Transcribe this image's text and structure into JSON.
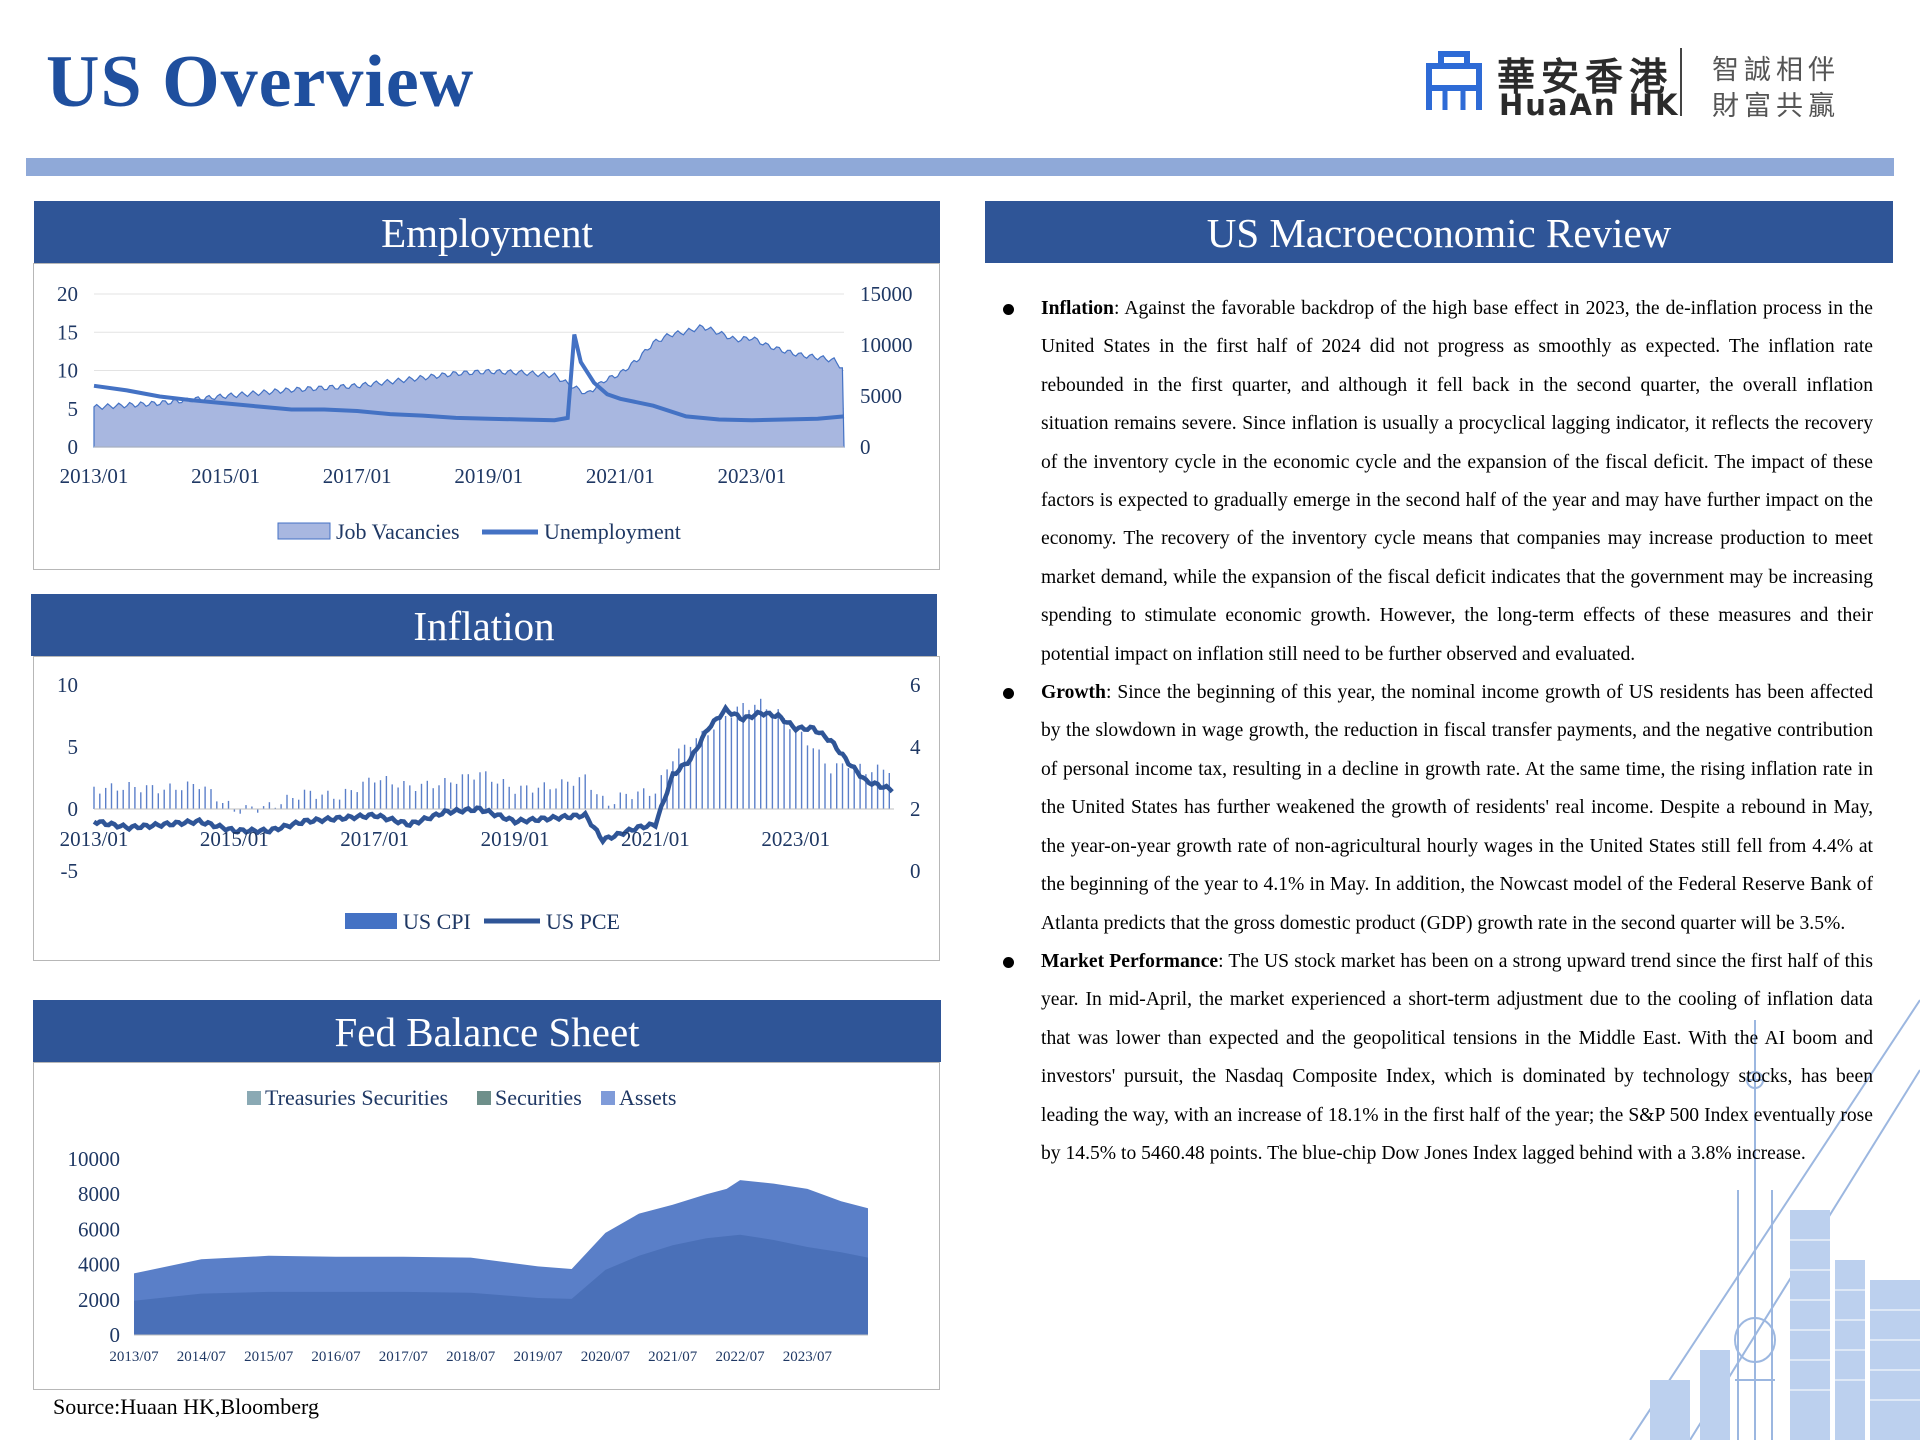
{
  "page": {
    "title": "US Overview",
    "source": "Source:Huaan HK,Bloomberg"
  },
  "logo": {
    "name_cn": "華安香港",
    "name_en": "HuaAn HK",
    "slogan_line1": "智誠相伴",
    "slogan_line2": "財富共贏",
    "brand_color": "#2e6bd6"
  },
  "colors": {
    "header_bar": "#2f5597",
    "top_rule": "#8fa9d8",
    "title": "#1f4f9e"
  },
  "employment": {
    "heading": "Employment",
    "chart_data": {
      "type": "area",
      "x_ticks": [
        "2013/01",
        "2015/01",
        "2017/01",
        "2019/01",
        "2021/01",
        "2023/01"
      ],
      "y_left": {
        "ticks": [
          "20",
          "15",
          "10",
          "5",
          "0"
        ],
        "range": [
          0,
          20
        ]
      },
      "y_right": {
        "ticks": [
          "15000",
          "10000",
          "5000",
          "0"
        ],
        "range": [
          0,
          15000
        ]
      },
      "legend": [
        "Job Vacancies",
        "Unemployment"
      ],
      "series": [
        {
          "name": "Job Vacancies",
          "axis": "right",
          "kind": "area",
          "color": "#a8b7e0",
          "x": [
            2013.0,
            2014.0,
            2015.0,
            2016.0,
            2017.0,
            2018.0,
            2018.5,
            2019.0,
            2019.5,
            2020.0,
            2020.25,
            2020.5,
            2020.75,
            2021.0,
            2021.25,
            2021.5,
            2021.75,
            2022.0,
            2022.25,
            2022.5,
            2022.75,
            2023.0,
            2023.25,
            2023.5,
            2023.75,
            2024.0,
            2024.25,
            2024.4
          ],
          "values": [
            3900,
            4300,
            5000,
            5600,
            6000,
            6800,
            7200,
            7400,
            7300,
            7000,
            6000,
            5200,
            6500,
            7200,
            8500,
            10200,
            11000,
            11300,
            11800,
            11200,
            10500,
            10700,
            9900,
            9400,
            9000,
            8800,
            8500,
            7600
          ]
        },
        {
          "name": "Unemployment",
          "axis": "left",
          "kind": "line",
          "color": "#4472c4",
          "x": [
            2013.0,
            2013.5,
            2014.0,
            2014.5,
            2015.0,
            2015.5,
            2016.0,
            2016.5,
            2017.0,
            2017.5,
            2018.0,
            2018.5,
            2019.0,
            2019.5,
            2020.0,
            2020.2,
            2020.3,
            2020.4,
            2020.6,
            2020.8,
            2021.0,
            2021.5,
            2022.0,
            2022.5,
            2023.0,
            2023.5,
            2024.0,
            2024.4
          ],
          "values": [
            8.0,
            7.4,
            6.6,
            6.1,
            5.7,
            5.3,
            4.9,
            4.9,
            4.7,
            4.3,
            4.1,
            3.8,
            3.7,
            3.6,
            3.5,
            3.8,
            14.7,
            11.1,
            8.4,
            6.9,
            6.3,
            5.4,
            4.0,
            3.6,
            3.5,
            3.6,
            3.7,
            4.0
          ]
        }
      ]
    }
  },
  "inflation": {
    "heading": "Inflation",
    "chart_data": {
      "type": "bar",
      "x_ticks": [
        "2013/01",
        "2015/01",
        "2017/01",
        "2019/01",
        "2021/01",
        "2023/01"
      ],
      "y_left": {
        "ticks": [
          "10",
          "5",
          "0",
          "-5"
        ],
        "range": [
          -5,
          10
        ]
      },
      "y_right": {
        "ticks": [
          "6",
          "4",
          "2",
          "0"
        ],
        "range": [
          0,
          6
        ]
      },
      "legend": [
        "US CPI",
        "US PCE"
      ],
      "series": [
        {
          "name": "US CPI",
          "axis": "left",
          "kind": "bar",
          "color": "#4472c4",
          "x": [
            2013.0,
            2013.5,
            2014.0,
            2014.5,
            2015.0,
            2015.5,
            2016.0,
            2016.5,
            2017.0,
            2017.5,
            2018.0,
            2018.5,
            2019.0,
            2019.5,
            2020.0,
            2020.3,
            2020.5,
            2020.75,
            2021.0,
            2021.25,
            2021.5,
            2021.75,
            2022.0,
            2022.25,
            2022.5,
            2022.75,
            2023.0,
            2023.25,
            2023.5,
            2023.75,
            2024.0,
            2024.4
          ],
          "values": [
            1.6,
            1.8,
            1.6,
            2.0,
            -0.1,
            0.2,
            1.3,
            1.0,
            2.5,
            1.8,
            2.1,
            2.9,
            1.6,
            1.8,
            2.5,
            0.3,
            1.0,
            1.3,
            1.4,
            4.2,
            5.4,
            6.2,
            7.5,
            8.3,
            8.5,
            7.7,
            6.4,
            5.0,
            3.2,
            3.7,
            3.1,
            3.3
          ]
        },
        {
          "name": "US PCE",
          "axis": "right",
          "kind": "line",
          "color": "#2f5597",
          "x": [
            2013.0,
            2013.5,
            2014.0,
            2014.5,
            2015.0,
            2015.5,
            2016.0,
            2016.5,
            2017.0,
            2017.5,
            2018.0,
            2018.5,
            2019.0,
            2019.5,
            2020.0,
            2020.25,
            2020.5,
            2020.75,
            2021.0,
            2021.25,
            2021.5,
            2021.75,
            2022.0,
            2022.25,
            2022.5,
            2022.75,
            2023.0,
            2023.25,
            2023.5,
            2023.75,
            2024.0,
            2024.4
          ],
          "values": [
            1.6,
            1.4,
            1.5,
            1.6,
            1.3,
            1.3,
            1.6,
            1.7,
            1.8,
            1.5,
            1.9,
            2.0,
            1.6,
            1.7,
            1.8,
            1.0,
            1.2,
            1.4,
            1.5,
            3.1,
            3.6,
            4.6,
            5.2,
            4.9,
            5.1,
            5.0,
            4.6,
            4.6,
            4.2,
            3.5,
            2.9,
            2.6
          ]
        }
      ]
    }
  },
  "fed": {
    "heading": "Fed Balance Sheet",
    "chart_data": {
      "type": "area",
      "categories": [
        "2013/07",
        "2014/07",
        "2015/07",
        "2016/07",
        "2017/07",
        "2018/07",
        "2019/07",
        "2020/07",
        "2021/07",
        "2022/07",
        "2023/07"
      ],
      "y_ticks": [
        "10000",
        "8000",
        "6000",
        "4000",
        "2000",
        "0"
      ],
      "ylim": [
        0,
        10000
      ],
      "legend": [
        "Treasuries Securities",
        "Securities",
        "Assets"
      ],
      "legend_colors": [
        "#8aa9b4",
        "#6e8f8a",
        "#7f9bd9"
      ],
      "series": [
        {
          "name": "Assets",
          "color": "#5a7fc8",
          "x": [
            2013.5,
            2014.5,
            2015.5,
            2016.5,
            2017.5,
            2018.5,
            2019.5,
            2020.0,
            2020.5,
            2021.0,
            2021.5,
            2022.0,
            2022.3,
            2022.5,
            2023.0,
            2023.5,
            2024.0,
            2024.4
          ],
          "values": [
            3500,
            4300,
            4500,
            4450,
            4450,
            4400,
            3900,
            3750,
            5800,
            6900,
            7400,
            8000,
            8300,
            8800,
            8600,
            8300,
            7600,
            7200
          ]
        },
        {
          "name": "Treasuries Securities",
          "color": "#4a70b8",
          "x": [
            2013.5,
            2014.5,
            2015.5,
            2016.5,
            2017.5,
            2018.5,
            2019.5,
            2020.0,
            2020.5,
            2021.0,
            2021.5,
            2022.0,
            2022.5,
            2023.0,
            2023.5,
            2024.0,
            2024.4
          ],
          "values": [
            1950,
            2350,
            2450,
            2450,
            2450,
            2400,
            2100,
            2050,
            3700,
            4500,
            5100,
            5500,
            5700,
            5400,
            5000,
            4700,
            4400
          ]
        }
      ]
    }
  },
  "review": {
    "heading": "US Macroeconomic Review",
    "items": [
      {
        "title": "Inflation",
        "text": ": Against the favorable backdrop of the high base effect in 2023, the de-inflation process in the United States in the first half of 2024 did not progress as smoothly as expected. The inflation rate rebounded in the first quarter, and although it fell back in the second quarter, the overall inflation situation remains severe. Since inflation is usually a procyclical lagging indicator, it reflects the recovery of the inventory cycle in the economic cycle and the expansion of the fiscal deficit. The impact of these factors is expected to gradually emerge in the second half of the year and may have further impact on the economy. The recovery of the inventory cycle means that companies may increase production to meet market demand, while the expansion of the fiscal deficit indicates that the government may be increasing spending to stimulate economic growth. However, the long-term effects of these measures and their potential impact on inflation still need to be further observed and evaluated."
      },
      {
        "title": "Growth",
        "text": ": Since the beginning of this year, the nominal income growth of US residents has been affected by the slowdown in wage growth, the reduction in fiscal transfer payments, and the negative contribution of personal income tax, resulting in a decline in growth rate. At the same time, the rising inflation rate in the United States has further weakened the growth of residents' real income. Despite a rebound in May, the year-on-year growth rate of non-agricultural hourly wages in the United States still fell from 4.4% at the beginning of the year to 4.1% in May. In addition, the Nowcast model of the Federal Reserve Bank of Atlanta predicts that the gross domestic product (GDP) growth rate in the second quarter will be 3.5%."
      },
      {
        "title": "Market Performance",
        "text": ": The US stock market has been on a strong upward trend since the first half of this year. In mid-April, the market experienced a short-term adjustment due to the cooling of inflation data that was lower than expected and the geopolitical tensions in the Middle East. With the AI boom and investors' pursuit, the Nasdaq Composite Index, which is dominated by technology stocks, has been leading the way, with an increase of 18.1% in the first half of the year; the S&P 500 Index eventually rose by 14.5% to 5460.48 points. The blue-chip Dow Jones Index lagged behind with a 3.8% increase."
      }
    ]
  }
}
